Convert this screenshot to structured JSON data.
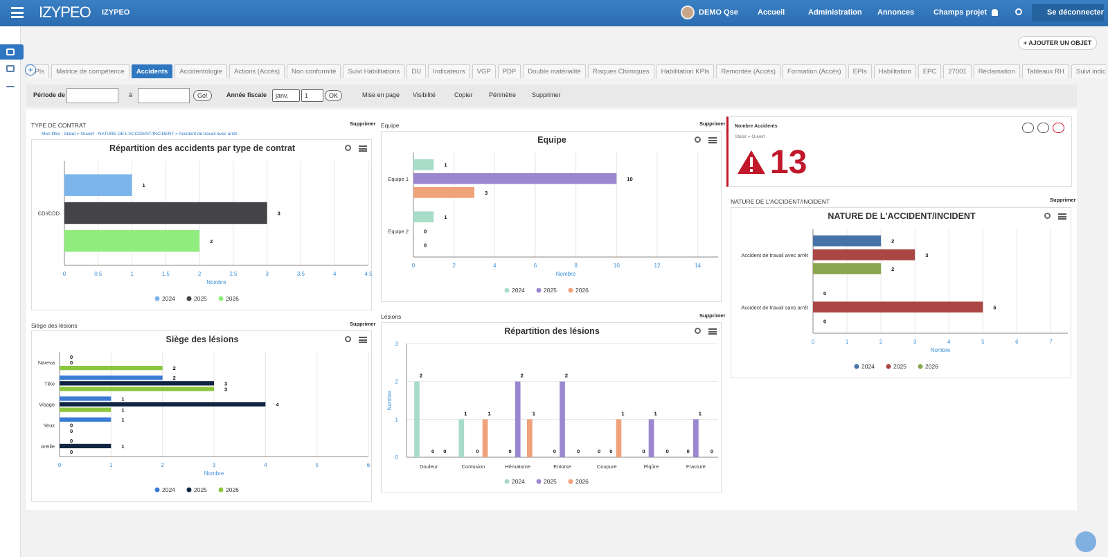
{
  "header": {
    "logo": "IZYPEO",
    "workspace": "IZYPEO",
    "user": "DEMO Qse",
    "nav": [
      "Accueil",
      "Administration",
      "Annonces",
      "Champs projet"
    ],
    "logout": "Se déconnecter"
  },
  "add_button": "AJOUTER UN OBJET",
  "tabs": [
    "KPIs",
    "Matrice de compétence",
    "Accidents",
    "Accidentologie",
    "Actions (Accès)",
    "Non conformité",
    "Suivi Habilitations",
    "DU",
    "Indicateurs",
    "VGP",
    "PDP",
    "Double matérialité",
    "Risques Chimiques",
    "Habilitation KPIs",
    "Remontée (Accès)",
    "Formation (Accès)",
    "EPIs",
    "Habilitation",
    "EPC",
    "27001",
    "Réclamation",
    "Tableaux RH",
    "Suivi indicateur"
  ],
  "active_tab": 2,
  "toolbar": {
    "period_from": "Période de",
    "period_to": "à",
    "go": "Go!",
    "fiscal_year": "Année fiscale",
    "month": "janv.",
    "day": "1",
    "ok": "OK",
    "actions": [
      "Mise en page",
      "Visibilité",
      "Copier",
      "Périmètre",
      "Supprimer"
    ]
  },
  "widgets": [
    {
      "label": "TYPE DE CONTRAT",
      "delete": "Supprimer",
      "filter": "Mon filtre : Statut = Ouvert - NATURE DE L'ACCIDENT/INCIDENT = Accident de travail avec arrêt"
    },
    {
      "label": "Equipe",
      "delete": "Supprimer"
    },
    {
      "label": "NATURE DE L'ACCIDENT/INCIDENT",
      "delete": "Supprimer"
    },
    {
      "label": "Siège des lésions",
      "delete": "Supprimer"
    },
    {
      "label": "Lésions",
      "delete": "Supprimer"
    }
  ],
  "kpi": {
    "title": "Nombre Accidents",
    "subtitle": "Statut = Ouvert",
    "value": 13
  },
  "chart_data": [
    {
      "type": "bar",
      "horizontal": true,
      "title": "Répartition des accidents par type de contrat",
      "categories": [
        "CDI/CDD"
      ],
      "series": [
        {
          "name": "2024",
          "color": "#7cb5ec",
          "values": [
            1
          ]
        },
        {
          "name": "2025",
          "color": "#434348",
          "values": [
            3
          ]
        },
        {
          "name": "2026",
          "color": "#90ed7d",
          "values": [
            2
          ]
        }
      ],
      "xlim": [
        0,
        4.5
      ],
      "xticks": [
        0,
        0.5,
        1,
        1.5,
        2,
        2.5,
        3,
        3.5,
        4,
        4.5
      ],
      "xlabel": "Nombre",
      "grid": true
    },
    {
      "type": "bar",
      "horizontal": true,
      "title": "Equipe",
      "categories": [
        "Equipe 1",
        "Equipe 2"
      ],
      "series": [
        {
          "name": "2024",
          "color": "#a8dcc8",
          "values": [
            1,
            1
          ]
        },
        {
          "name": "2025",
          "color": "#9b87d0",
          "values": [
            10,
            0
          ]
        },
        {
          "name": "2026",
          "color": "#f0a27a",
          "values": [
            3,
            0
          ]
        }
      ],
      "xlim": [
        0,
        15
      ],
      "xticks": [
        0,
        2,
        4,
        6,
        8,
        10,
        12,
        14
      ],
      "xlabel": "Nombre",
      "grid": true
    },
    {
      "type": "bar",
      "horizontal": true,
      "title": "NATURE DE L'ACCIDENT/INCIDENT",
      "categories": [
        "Accident de travail avec arrêt",
        "Accident de travail sans arrêt"
      ],
      "series": [
        {
          "name": "2024",
          "color": "#4572a7",
          "values": [
            2,
            0
          ]
        },
        {
          "name": "2025",
          "color": "#aa4643",
          "values": [
            3,
            5
          ]
        },
        {
          "name": "2026",
          "color": "#89a54e",
          "values": [
            2,
            0
          ]
        }
      ],
      "xlim": [
        0,
        7.5
      ],
      "xticks": [
        0,
        1,
        2,
        3,
        4,
        5,
        6,
        7
      ],
      "xlabel": "Nombre",
      "grid": true
    },
    {
      "type": "bar",
      "horizontal": true,
      "title": "Siège des lésions",
      "categories": [
        "Nareva",
        "Tête",
        "Visage",
        "Yeux",
        "oreille"
      ],
      "series": [
        {
          "name": "2024",
          "color": "#3a7bd5",
          "values": [
            0,
            2,
            1,
            1,
            0
          ]
        },
        {
          "name": "2025",
          "color": "#0f2541",
          "values": [
            0,
            3,
            4,
            0,
            1
          ]
        },
        {
          "name": "2026",
          "color": "#8cc63f",
          "values": [
            2,
            3,
            1,
            0,
            0
          ]
        }
      ],
      "xlim": [
        0,
        6
      ],
      "xticks": [
        0,
        1,
        2,
        3,
        4,
        5,
        6
      ],
      "xlabel": "Nombre",
      "grid": true
    },
    {
      "type": "bar",
      "horizontal": false,
      "title": "Répartition des lésions",
      "categories": [
        "Douleur",
        "Contusion",
        "Hématome",
        "Entorse",
        "Coupure",
        "Piqûre",
        "Fracture"
      ],
      "series": [
        {
          "name": "2024",
          "color": "#a8dcc8",
          "values": [
            2,
            1,
            0,
            0,
            0,
            0,
            0
          ]
        },
        {
          "name": "2025",
          "color": "#9b87d0",
          "values": [
            0,
            0,
            2,
            2,
            0,
            1,
            1
          ]
        },
        {
          "name": "2026",
          "color": "#f0a27a",
          "values": [
            0,
            1,
            1,
            0,
            1,
            0,
            0
          ]
        }
      ],
      "ylim": [
        0,
        3
      ],
      "yticks": [
        0,
        1,
        2,
        3
      ],
      "ylabel": "Nombre",
      "grid": true
    }
  ]
}
